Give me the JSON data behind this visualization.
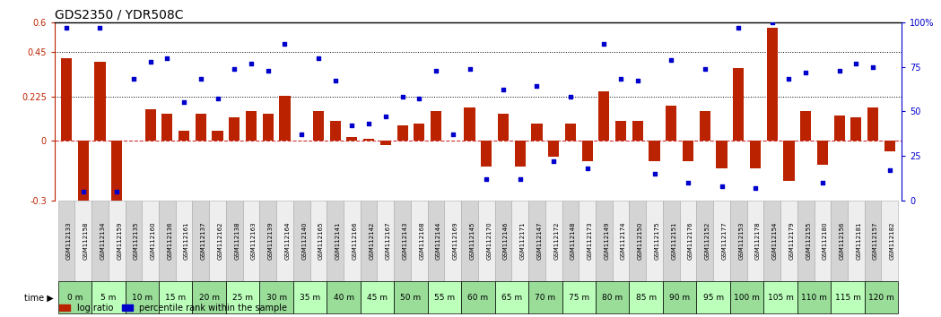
{
  "title": "GDS2350 / YDR508C",
  "gsm_labels": [
    "GSM112133",
    "GSM112158",
    "GSM112134",
    "GSM112159",
    "GSM112135",
    "GSM112160",
    "GSM112136",
    "GSM112161",
    "GSM112137",
    "GSM112162",
    "GSM112138",
    "GSM112163",
    "GSM112139",
    "GSM112164",
    "GSM112140",
    "GSM112165",
    "GSM112141",
    "GSM112166",
    "GSM112142",
    "GSM112167",
    "GSM112143",
    "GSM112168",
    "GSM112144",
    "GSM112169",
    "GSM112145",
    "GSM112170",
    "GSM112146",
    "GSM112171",
    "GSM112147",
    "GSM112172",
    "GSM112148",
    "GSM112173",
    "GSM112149",
    "GSM112174",
    "GSM112150",
    "GSM112175",
    "GSM112151",
    "GSM112176",
    "GSM112152",
    "GSM112177",
    "GSM112153",
    "GSM112178",
    "GSM112154",
    "GSM112179",
    "GSM112155",
    "GSM112180",
    "GSM112156",
    "GSM112181",
    "GSM112157",
    "GSM112182"
  ],
  "time_labels": [
    "0 m",
    "5 m",
    "10 m",
    "15 m",
    "20 m",
    "25 m",
    "30 m",
    "35 m",
    "40 m",
    "45 m",
    "50 m",
    "55 m",
    "60 m",
    "65 m",
    "70 m",
    "75 m",
    "80 m",
    "85 m",
    "90 m",
    "95 m",
    "100 m",
    "105 m",
    "110 m",
    "115 m",
    "120 m"
  ],
  "log_ratio": [
    0.42,
    -0.3,
    0.4,
    -0.3,
    0.0,
    0.16,
    0.14,
    0.05,
    0.14,
    0.05,
    0.12,
    0.15,
    0.14,
    0.23,
    0.0,
    0.15,
    0.1,
    0.02,
    0.01,
    -0.02,
    0.08,
    0.09,
    0.15,
    0.0,
    0.17,
    -0.13,
    0.14,
    -0.13,
    0.09,
    -0.08,
    0.09,
    -0.1,
    0.25,
    0.1,
    0.1,
    -0.1,
    0.18,
    -0.1,
    0.15,
    -0.14,
    0.37,
    -0.14,
    0.57,
    -0.2,
    0.15,
    -0.12,
    0.13,
    0.12,
    0.17,
    -0.05
  ],
  "percentile": [
    97,
    5,
    97,
    5,
    68,
    78,
    80,
    55,
    68,
    57,
    74,
    77,
    73,
    88,
    37,
    80,
    67,
    42,
    43,
    47,
    58,
    57,
    73,
    37,
    74,
    12,
    62,
    12,
    64,
    22,
    58,
    18,
    88,
    68,
    67,
    15,
    79,
    10,
    74,
    8,
    97,
    7,
    100,
    68,
    72,
    10,
    73,
    77,
    75,
    17
  ],
  "ylim_left": [
    -0.3,
    0.6
  ],
  "ylim_right": [
    0,
    100
  ],
  "yticks_left": [
    -0.3,
    0.0,
    0.225,
    0.45,
    0.6
  ],
  "ytick_labels_left": [
    "-0.3",
    "0",
    "0.225",
    "0.45",
    "0.6"
  ],
  "yticks_right": [
    0,
    25,
    50,
    75,
    100
  ],
  "ytick_labels_right": [
    "0",
    "25",
    "50",
    "75",
    "100%"
  ],
  "hlines": [
    0.45,
    0.225
  ],
  "bar_color": "#bb2200",
  "scatter_color": "#0000cc",
  "zero_line_color": "#cc3333",
  "background_color": "#ffffff",
  "title_fontsize": 10,
  "tick_fontsize": 7,
  "time_bg_color_odd": "#99dd99",
  "time_bg_color_even": "#bbffbb",
  "gsm_bg_odd": "#d4d4d4",
  "gsm_bg_even": "#eeeeee"
}
